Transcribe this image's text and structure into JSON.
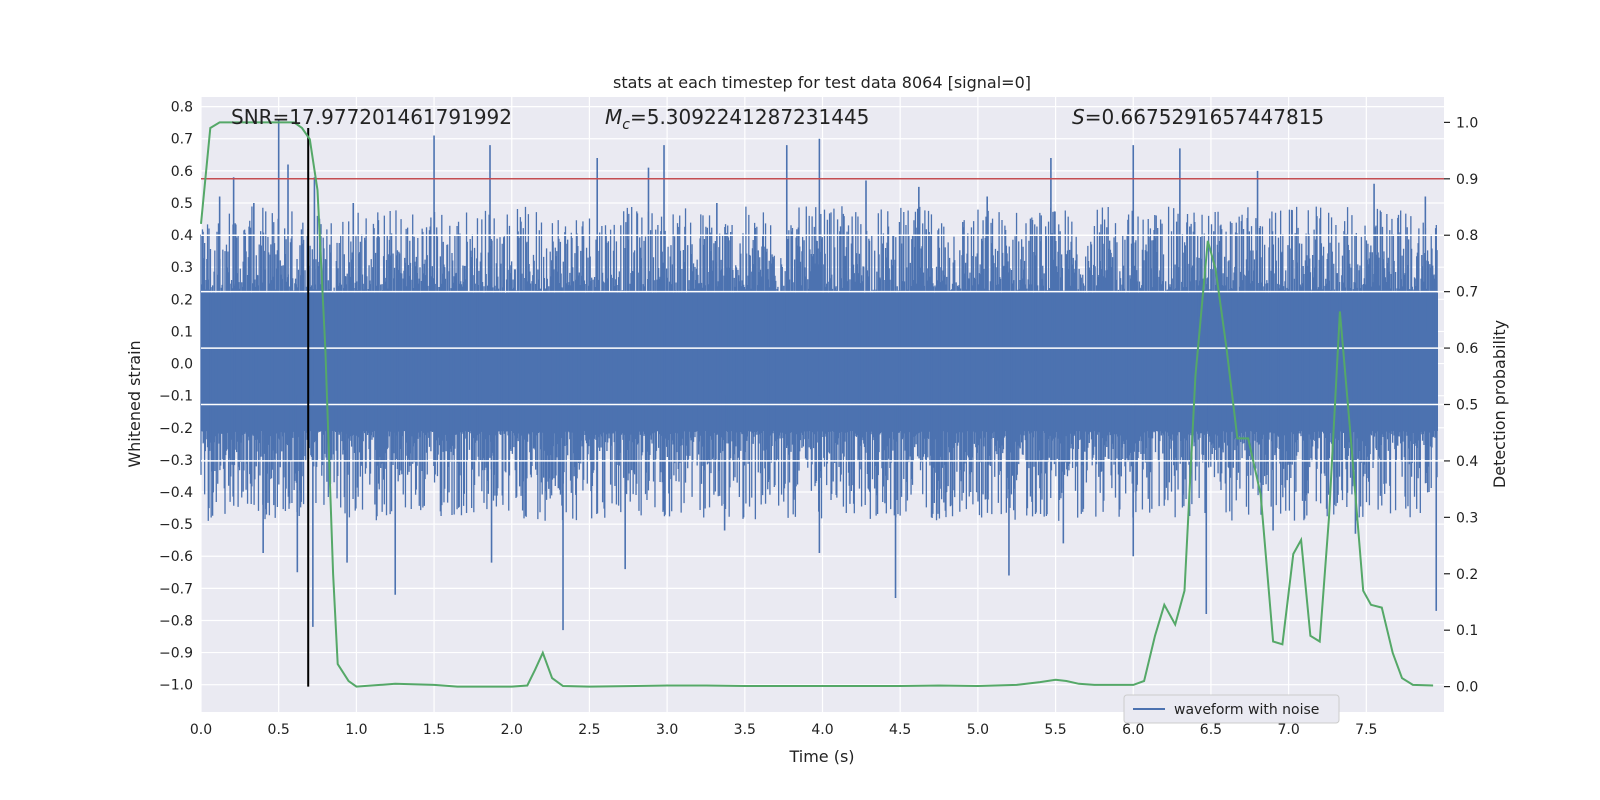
{
  "chart_data": {
    "type": "line",
    "title": "stats at each timestep for test data 8064 [signal=0]",
    "xlabel": "Time (s)",
    "ylabel": "Whitened strain",
    "y2label": "Detection probability",
    "xlim": [
      0.0,
      8.0
    ],
    "ylim": [
      -1.085,
      0.83
    ],
    "y2lim": [
      -0.045,
      1.045
    ],
    "x_ticks": [
      "0.0",
      "0.5",
      "1.0",
      "1.5",
      "2.0",
      "2.5",
      "3.0",
      "3.5",
      "4.0",
      "4.5",
      "5.0",
      "5.5",
      "6.0",
      "6.5",
      "7.0",
      "7.5"
    ],
    "y_ticks": [
      "0.8",
      "0.7",
      "0.6",
      "0.5",
      "0.4",
      "0.3",
      "0.2",
      "0.1",
      "0.0",
      "−0.1",
      "−0.2",
      "−0.3",
      "−0.4",
      "−0.5",
      "−0.6",
      "−0.7",
      "−0.8",
      "−0.9",
      "−1.0"
    ],
    "y2_ticks": [
      "1.0",
      "0.9",
      "0.8",
      "0.7",
      "0.6",
      "0.5",
      "0.4",
      "0.3",
      "0.2",
      "0.1",
      "0.0"
    ],
    "grid": true,
    "legend_position": "lower-right",
    "annotations": {
      "snr": "SNR=17.977201461791992",
      "mc_symbol": "M",
      "mc_subscript": "c",
      "mc_value": "=5.3092241287231445",
      "s_symbol": "S",
      "s_value": "=0.6675291657447815"
    },
    "threshold_line": {
      "y2": 0.9,
      "color": "#c44e52"
    },
    "marker_line": {
      "x": 0.69,
      "color": "#000000"
    },
    "waveform": {
      "name": "waveform with noise",
      "color": "#4c72b0",
      "core_band": [
        -0.21,
        0.22
      ],
      "peaks": [
        {
          "x": 0.12,
          "y": 0.52
        },
        {
          "x": 0.21,
          "y": 0.58
        },
        {
          "x": 0.34,
          "y": 0.5
        },
        {
          "x": 0.5,
          "y": 0.76
        },
        {
          "x": 0.56,
          "y": 0.62
        },
        {
          "x": 0.73,
          "y": 0.58
        },
        {
          "x": 0.98,
          "y": 0.5
        },
        {
          "x": 1.5,
          "y": 0.71
        },
        {
          "x": 1.86,
          "y": 0.68
        },
        {
          "x": 2.55,
          "y": 0.64
        },
        {
          "x": 2.88,
          "y": 0.61
        },
        {
          "x": 2.98,
          "y": 0.68
        },
        {
          "x": 3.32,
          "y": 0.5
        },
        {
          "x": 3.77,
          "y": 0.68
        },
        {
          "x": 3.98,
          "y": 0.7
        },
        {
          "x": 4.28,
          "y": 0.57
        },
        {
          "x": 4.62,
          "y": 0.55
        },
        {
          "x": 5.06,
          "y": 0.52
        },
        {
          "x": 5.47,
          "y": 0.64
        },
        {
          "x": 6.0,
          "y": 0.68
        },
        {
          "x": 6.3,
          "y": 0.67
        },
        {
          "x": 6.8,
          "y": 0.6
        },
        {
          "x": 7.55,
          "y": 0.56
        },
        {
          "x": 7.88,
          "y": 0.52
        }
      ],
      "troughs": [
        {
          "x": 0.4,
          "y": -0.59
        },
        {
          "x": 0.62,
          "y": -0.65
        },
        {
          "x": 0.72,
          "y": -0.82
        },
        {
          "x": 0.94,
          "y": -0.62
        },
        {
          "x": 1.25,
          "y": -0.72
        },
        {
          "x": 1.87,
          "y": -0.62
        },
        {
          "x": 2.33,
          "y": -0.83
        },
        {
          "x": 2.73,
          "y": -0.64
        },
        {
          "x": 3.37,
          "y": -0.52
        },
        {
          "x": 3.98,
          "y": -0.59
        },
        {
          "x": 4.47,
          "y": -0.73
        },
        {
          "x": 5.2,
          "y": -0.66
        },
        {
          "x": 5.55,
          "y": -0.56
        },
        {
          "x": 6.0,
          "y": -0.6
        },
        {
          "x": 6.47,
          "y": -0.78
        },
        {
          "x": 6.9,
          "y": -0.52
        },
        {
          "x": 7.43,
          "y": -0.53
        },
        {
          "x": 7.95,
          "y": -0.77
        }
      ]
    },
    "detection_probability": {
      "color": "#55a868",
      "x": [
        0.0,
        0.06,
        0.12,
        0.2,
        0.35,
        0.5,
        0.6,
        0.65,
        0.7,
        0.75,
        0.8,
        0.85,
        0.88,
        0.95,
        1.0,
        1.25,
        1.5,
        1.65,
        2.0,
        2.1,
        2.15,
        2.2,
        2.26,
        2.33,
        2.5,
        3.0,
        3.25,
        3.5,
        4.0,
        4.5,
        4.75,
        5.0,
        5.25,
        5.4,
        5.5,
        5.57,
        5.65,
        5.75,
        6.0,
        6.07,
        6.14,
        6.2,
        6.27,
        6.33,
        6.4,
        6.48,
        6.53,
        6.6,
        6.67,
        6.74,
        6.82,
        6.9,
        6.96,
        7.03,
        7.08,
        7.14,
        7.2,
        7.26,
        7.33,
        7.4,
        7.48,
        7.53,
        7.6,
        7.67,
        7.73,
        7.8,
        7.93
      ],
      "y": [
        0.82,
        0.99,
        1.0,
        1.0,
        1.0,
        1.0,
        1.0,
        0.99,
        0.97,
        0.88,
        0.6,
        0.2,
        0.04,
        0.01,
        0.0,
        0.005,
        0.003,
        0.0,
        0.0,
        0.002,
        0.03,
        0.06,
        0.015,
        0.001,
        0.0,
        0.002,
        0.002,
        0.001,
        0.001,
        0.001,
        0.002,
        0.001,
        0.003,
        0.008,
        0.012,
        0.01,
        0.005,
        0.003,
        0.003,
        0.01,
        0.09,
        0.145,
        0.11,
        0.17,
        0.55,
        0.79,
        0.74,
        0.6,
        0.44,
        0.44,
        0.34,
        0.08,
        0.075,
        0.235,
        0.26,
        0.09,
        0.08,
        0.3,
        0.665,
        0.44,
        0.17,
        0.145,
        0.14,
        0.06,
        0.015,
        0.003,
        0.002
      ]
    }
  }
}
